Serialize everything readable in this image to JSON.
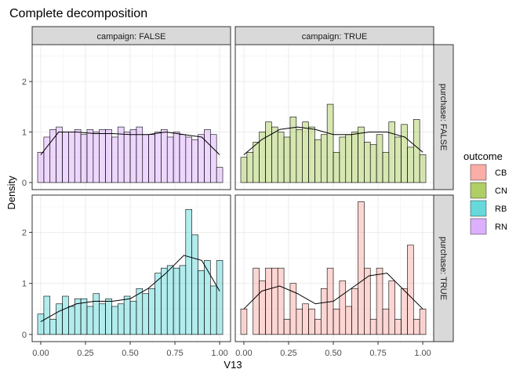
{
  "chart_data": {
    "type": "histogram",
    "title": "Complete decomposition",
    "x_label": "V13",
    "y_label": "Density",
    "legend_title": "outcome",
    "facet_cols": [
      "campaign: FALSE",
      "campaign: TRUE"
    ],
    "facet_rows": [
      "purchase: FALSE",
      "purchase: TRUE"
    ],
    "bins": [
      -0.0172,
      0.0173,
      0.0517,
      0.0862,
      0.1207,
      0.1552,
      0.1897,
      0.2241,
      0.2586,
      0.2931,
      0.3276,
      0.3621,
      0.3966,
      0.431,
      0.4655,
      0.5,
      0.5345,
      0.569,
      0.6034,
      0.6379,
      0.6724,
      0.7069,
      0.7414,
      0.7759,
      0.8103,
      0.8448,
      0.8793,
      0.9138,
      0.9483,
      0.9828,
      1.0172
    ],
    "density_x": [
      0,
      0.1,
      0.2,
      0.3,
      0.4,
      0.5,
      0.6,
      0.7,
      0.8,
      0.9,
      1.0
    ],
    "xlim": [
      -0.048,
      1.061
    ],
    "ylim": [
      -0.14,
      2.73
    ],
    "xticks": [
      {
        "value": 0,
        "label": "0.00"
      },
      {
        "value": 0.25,
        "label": "0.25"
      },
      {
        "value": 0.5,
        "label": "0.50"
      },
      {
        "value": 0.75,
        "label": "0.75"
      },
      {
        "value": 1,
        "label": "1.00"
      }
    ],
    "yticks": [
      0,
      1,
      2
    ],
    "xminor": [
      0.125,
      0.375,
      0.625,
      0.875
    ],
    "yminor": [
      0.5,
      1.5,
      2.5
    ],
    "grid": true,
    "bar_alpha": 0.3,
    "legend_alpha": 0.6,
    "panels": [
      {
        "name": "RN",
        "color": "#C77CFF",
        "values": [
          0.6,
          0.9,
          1.05,
          1.1,
          1.0,
          1.0,
          1.05,
          0.95,
          1.05,
          1.0,
          1.05,
          1.05,
          0.9,
          1.1,
          1.0,
          1.05,
          1.1,
          0.95,
          0.95,
          1.0,
          1.05,
          0.9,
          1.0,
          0.95,
          0.9,
          0.85,
          0.95,
          1.05,
          0.95,
          0.3
        ],
        "density": [
          0.55,
          1.0,
          1.0,
          0.97,
          0.97,
          0.95,
          0.95,
          1.0,
          0.95,
          0.9,
          0.55
        ]
      },
      {
        "name": "CN",
        "color": "#7CAE00",
        "values": [
          0.5,
          0.6,
          0.8,
          1.0,
          1.2,
          1.1,
          1.0,
          0.9,
          1.3,
          1.05,
          1.2,
          1.1,
          0.85,
          0.95,
          1.55,
          0.6,
          0.9,
          0.95,
          1.0,
          1.1,
          0.8,
          0.75,
          0.95,
          0.6,
          1.2,
          0.9,
          1.15,
          0.7,
          1.25,
          0.55
        ],
        "density": [
          0.55,
          0.85,
          1.05,
          1.1,
          1.05,
          0.95,
          0.95,
          1.0,
          1.0,
          0.9,
          0.6
        ]
      },
      {
        "name": "RB",
        "color": "#00BFC4",
        "values": [
          0.4,
          0.75,
          0.3,
          0.6,
          0.75,
          0.55,
          0.7,
          0.7,
          0.55,
          0.8,
          0.6,
          0.7,
          0.55,
          0.6,
          0.75,
          0.65,
          0.9,
          0.8,
          0.9,
          1.2,
          1.3,
          1.35,
          1.3,
          1.35,
          2.45,
          1.95,
          1.25,
          1.45,
          0.95,
          1.45
        ],
        "density": [
          0.25,
          0.45,
          0.6,
          0.65,
          0.65,
          0.7,
          0.9,
          1.2,
          1.55,
          1.45,
          0.85
        ]
      },
      {
        "name": "CB",
        "color": "#F8766D",
        "values": [
          0.5,
          0,
          1.3,
          1.05,
          1.3,
          1.3,
          1.3,
          0.3,
          1.0,
          0.5,
          0.6,
          0.5,
          0.3,
          0.9,
          1.3,
          0.5,
          1.05,
          0.55,
          0.9,
          2.6,
          1.3,
          0.3,
          1.3,
          0.5,
          1.05,
          0.3,
          0.9,
          1.75,
          0.3,
          0.5
        ],
        "density": [
          0.5,
          0.85,
          0.95,
          0.8,
          0.6,
          0.65,
          0.9,
          1.15,
          1.2,
          0.85,
          0.5
        ]
      }
    ]
  }
}
